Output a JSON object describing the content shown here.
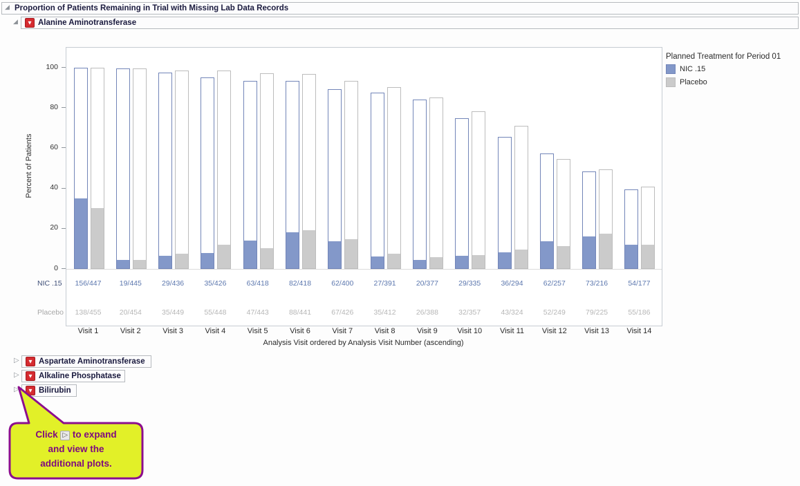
{
  "report": {
    "title": "Proportion of Patients Remaining in Trial with Missing Lab Data Records"
  },
  "sections": {
    "expanded_label": "Alanine Aminotransferase",
    "collapsed": [
      {
        "label": "Aspartate Aminotransferase"
      },
      {
        "label": "Alkaline Phosphatase"
      },
      {
        "label": "Bilirubin"
      }
    ]
  },
  "icons": {
    "expanded_glyph": "◢",
    "collapsed_glyph": "▷",
    "menu_glyph": "▼"
  },
  "colors": {
    "nic_fill": "#8398c9",
    "nic_border": "#7285b8",
    "placebo_fill": "#cbcbcb",
    "placebo_border": "#bcbcbc",
    "plot_frame": "#c6ccd2",
    "menu_button_red": "#d52b30",
    "callout_bg": "#e2f028",
    "callout_border": "#8c0e8e",
    "callout_text": "#7e0a80"
  },
  "chart_data": {
    "type": "bar",
    "title": "",
    "legend_title": "Planned Treatment for Period 01",
    "legend_position": "right",
    "ylabel": "Percent of Patients",
    "xlabel": "Analysis Visit ordered by Analysis Visit Number (ascending)",
    "ylim": [
      0,
      100
    ],
    "yticks": [
      0,
      20,
      40,
      60,
      80,
      100
    ],
    "grid": false,
    "categories": [
      "Visit 1",
      "Visit 2",
      "Visit 3",
      "Visit 4",
      "Visit 5",
      "Visit 6",
      "Visit 7",
      "Visit 8",
      "Visit 9",
      "Visit 10",
      "Visit 11",
      "Visit 12",
      "Visit 13",
      "Visit 14"
    ],
    "series": [
      {
        "name": "NIC .15",
        "color": "#8398c9",
        "border": "#7285b8",
        "label_color": "#5c77ae",
        "row_label_color": "#3f4f78",
        "remaining_pct": [
          100,
          99.6,
          97.5,
          95.3,
          93.5,
          93.5,
          89.5,
          87.5,
          84.3,
          74.9,
          65.8,
          57.5,
          48.3,
          39.6
        ],
        "missing_pct": [
          34.9,
          4.3,
          6.5,
          7.8,
          14.1,
          18.3,
          13.9,
          6.0,
          4.5,
          6.5,
          8.1,
          13.9,
          16.3,
          12.1
        ],
        "fractions": [
          "156/447",
          "19/445",
          "29/436",
          "35/426",
          "63/418",
          "82/418",
          "62/400",
          "27/391",
          "20/377",
          "29/335",
          "36/294",
          "62/257",
          "73/216",
          "54/177"
        ]
      },
      {
        "name": "Placebo",
        "color": "#cbcbcb",
        "border": "#bcbcbc",
        "label_color": "#b6b6b6",
        "row_label_color": "#a7a7a7",
        "remaining_pct": [
          100,
          99.8,
          98.7,
          98.5,
          97.4,
          96.9,
          93.6,
          90.5,
          85.3,
          78.5,
          71.2,
          54.7,
          49.5,
          40.9
        ],
        "missing_pct": [
          30.3,
          4.4,
          7.7,
          12.1,
          10.3,
          19.3,
          14.7,
          7.7,
          5.7,
          7.0,
          9.5,
          11.4,
          17.4,
          12.1
        ],
        "fractions": [
          "138/455",
          "20/454",
          "35/449",
          "55/448",
          "47/443",
          "88/441",
          "67/426",
          "35/412",
          "26/388",
          "32/357",
          "43/324",
          "52/249",
          "79/225",
          "55/186"
        ]
      }
    ]
  },
  "callout": {
    "line1_pre": "Click",
    "expand_glyph": "▷",
    "line1_post": "to expand",
    "line2": "and view the",
    "line3": "additional plots."
  }
}
